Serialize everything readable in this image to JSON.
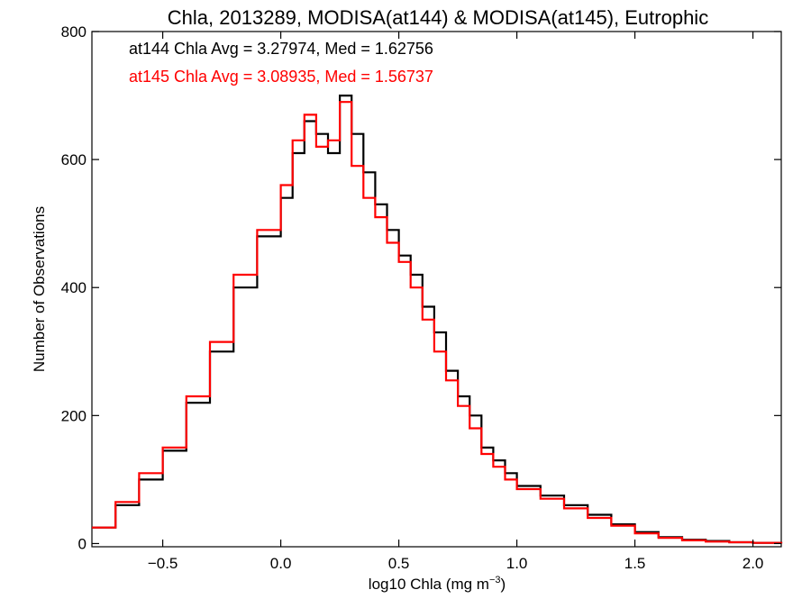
{
  "chart_data": {
    "type": "line",
    "title": "Chla, 2013289, MODISA(at144) & MODISA(at145), Eutrophic",
    "xlabel": "log10 Chla (mg m",
    "xlabel_sup": "−3",
    "xlabel_end": ")",
    "ylabel": "Number of Observations",
    "xlim": [
      -0.8,
      2.12
    ],
    "ylim": [
      -5,
      800
    ],
    "x_ticks": [
      -0.5,
      0.0,
      0.5,
      1.0,
      1.5,
      2.0
    ],
    "x_tick_labels": [
      "−0.5",
      "0.0",
      "0.5",
      "1.0",
      "1.5",
      "2.0"
    ],
    "y_ticks": [
      0,
      200,
      400,
      600,
      800
    ],
    "y_tick_labels": [
      "0",
      "200",
      "400",
      "600",
      "800"
    ],
    "annotations": [
      {
        "text": "at144 Chla Avg = 3.27974, Med = 1.62756",
        "color": "#000000"
      },
      {
        "text": "at145 Chla Avg = 3.08935, Med = 1.56737",
        "color": "#ff0000"
      }
    ],
    "series": [
      {
        "color": "#000000",
        "x": [
          -0.8,
          -0.7,
          -0.6,
          -0.5,
          -0.4,
          -0.3,
          -0.2,
          -0.1,
          0.0,
          0.05,
          0.1,
          0.15,
          0.2,
          0.25,
          0.3,
          0.35,
          0.4,
          0.45,
          0.5,
          0.55,
          0.6,
          0.65,
          0.7,
          0.75,
          0.8,
          0.85,
          0.9,
          0.95,
          1.0,
          1.1,
          1.2,
          1.3,
          1.4,
          1.5,
          1.6,
          1.7,
          1.8,
          1.9,
          2.0,
          2.12
        ],
        "y": [
          25,
          60,
          100,
          145,
          220,
          300,
          400,
          480,
          540,
          610,
          660,
          640,
          610,
          700,
          640,
          580,
          530,
          490,
          450,
          420,
          370,
          330,
          270,
          230,
          200,
          150,
          130,
          110,
          90,
          75,
          60,
          45,
          30,
          18,
          10,
          6,
          4,
          2,
          1,
          0
        ]
      },
      {
        "color": "#ff0000",
        "x": [
          -0.8,
          -0.7,
          -0.6,
          -0.5,
          -0.4,
          -0.3,
          -0.2,
          -0.1,
          0.0,
          0.05,
          0.1,
          0.15,
          0.2,
          0.25,
          0.3,
          0.35,
          0.4,
          0.45,
          0.5,
          0.55,
          0.6,
          0.65,
          0.7,
          0.75,
          0.8,
          0.85,
          0.9,
          0.95,
          1.0,
          1.1,
          1.2,
          1.3,
          1.4,
          1.5,
          1.6,
          1.7,
          1.8,
          1.9,
          2.0,
          2.12
        ],
        "y": [
          25,
          65,
          110,
          150,
          230,
          315,
          420,
          490,
          560,
          630,
          670,
          620,
          630,
          690,
          590,
          540,
          510,
          470,
          440,
          400,
          350,
          300,
          255,
          215,
          180,
          140,
          120,
          100,
          85,
          70,
          55,
          40,
          28,
          16,
          9,
          5,
          3,
          2,
          1,
          0
        ]
      }
    ]
  }
}
